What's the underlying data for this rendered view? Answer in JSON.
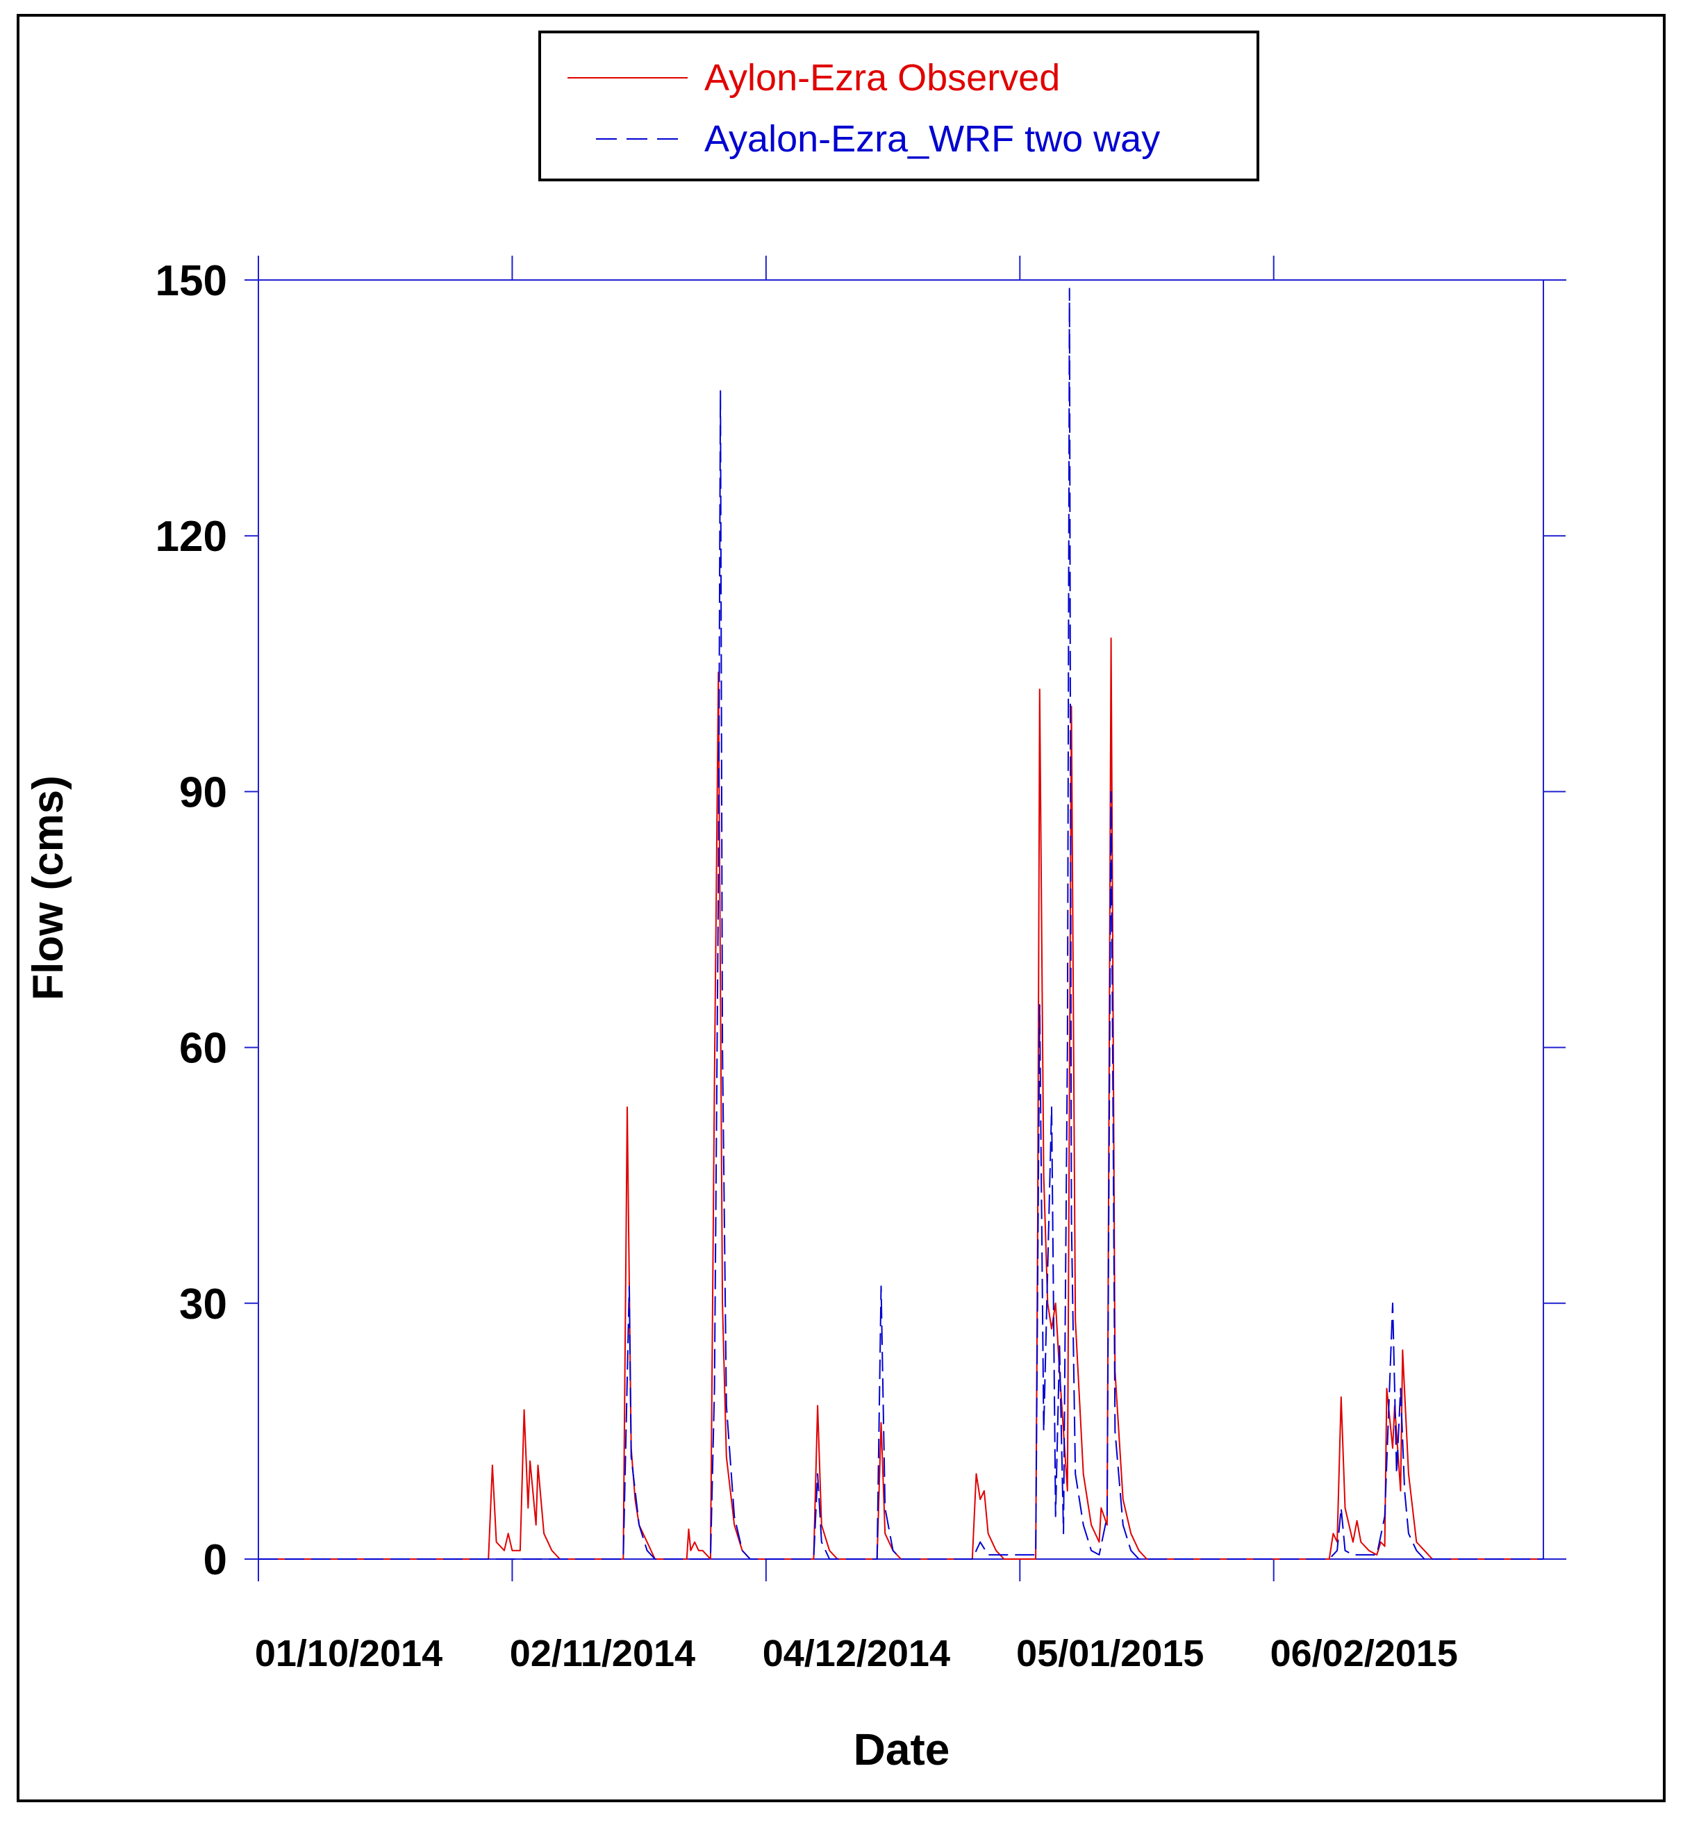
{
  "chart_data": {
    "type": "line",
    "title": "",
    "xlabel": "Date",
    "ylabel": "Flow (cms)",
    "x_type": "date",
    "xlim": [
      "2014-10-01",
      "2015-03-12"
    ],
    "ylim": [
      0,
      150
    ],
    "x_ticks": [
      {
        "date": "2014-10-01",
        "label": "01/10/2014"
      },
      {
        "date": "2014-11-02",
        "label": "02/11/2014"
      },
      {
        "date": "2014-12-04",
        "label": "04/12/2014"
      },
      {
        "date": "2015-01-05",
        "label": "05/01/2015"
      },
      {
        "date": "2015-02-06",
        "label": "06/02/2015"
      }
    ],
    "y_ticks": [
      0,
      30,
      60,
      90,
      120,
      150
    ],
    "y_tick_labels": [
      "0",
      "30",
      "60",
      "90",
      "120",
      "150"
    ],
    "grid": false,
    "legend_position": "top-center",
    "series": [
      {
        "name": "Aylon-Ezra Observed",
        "color": "#e00000",
        "line_style": "solid",
        "points": [
          [
            "2014-10-01",
            0
          ],
          [
            "2014-10-30",
            0
          ],
          [
            "2014-10-30T12",
            11
          ],
          [
            "2014-10-31",
            2
          ],
          [
            "2014-11-01",
            1
          ],
          [
            "2014-11-01T12",
            3
          ],
          [
            "2014-11-02",
            1
          ],
          [
            "2014-11-03",
            1
          ],
          [
            "2014-11-03T12",
            17.5
          ],
          [
            "2014-11-04",
            6
          ],
          [
            "2014-11-04T06",
            11.5
          ],
          [
            "2014-11-05",
            4
          ],
          [
            "2014-11-05T06",
            11
          ],
          [
            "2014-11-06",
            3
          ],
          [
            "2014-11-07",
            1
          ],
          [
            "2014-11-08",
            0
          ],
          [
            "2014-11-16",
            0
          ],
          [
            "2014-11-16T12",
            53
          ],
          [
            "2014-11-17",
            13
          ],
          [
            "2014-11-17T12",
            7
          ],
          [
            "2014-11-18",
            4
          ],
          [
            "2014-11-19",
            2
          ],
          [
            "2014-11-20",
            0
          ],
          [
            "2014-11-24",
            0
          ],
          [
            "2014-11-24T06",
            3.5
          ],
          [
            "2014-11-24T12",
            1
          ],
          [
            "2014-11-25",
            2
          ],
          [
            "2014-11-25T12",
            1
          ],
          [
            "2014-11-26",
            1
          ],
          [
            "2014-11-27",
            0
          ],
          [
            "2014-11-27T12",
            56
          ],
          [
            "2014-11-28",
            104
          ],
          [
            "2014-11-28T12",
            30
          ],
          [
            "2014-11-29",
            12
          ],
          [
            "2014-11-30",
            4
          ],
          [
            "2014-12-01",
            1
          ],
          [
            "2014-12-02",
            0
          ],
          [
            "2014-12-10",
            0
          ],
          [
            "2014-12-10T12",
            18
          ],
          [
            "2014-12-11",
            4
          ],
          [
            "2014-12-12",
            1
          ],
          [
            "2014-12-13",
            0
          ],
          [
            "2014-12-18",
            0
          ],
          [
            "2014-12-18T12",
            16
          ],
          [
            "2014-12-19",
            3
          ],
          [
            "2014-12-20",
            1
          ],
          [
            "2014-12-21",
            0
          ],
          [
            "2014-12-30",
            0
          ],
          [
            "2014-12-30T12",
            10
          ],
          [
            "2014-12-31",
            7
          ],
          [
            "2014-12-31T12",
            8
          ],
          [
            "2015-01-01",
            3
          ],
          [
            "2015-01-02",
            1
          ],
          [
            "2015-01-03",
            0
          ],
          [
            "2015-01-07",
            0
          ],
          [
            "2015-01-07T06",
            40
          ],
          [
            "2015-01-07T12",
            102
          ],
          [
            "2015-01-08",
            45
          ],
          [
            "2015-01-08T12",
            30
          ],
          [
            "2015-01-09",
            27
          ],
          [
            "2015-01-09T12",
            30
          ],
          [
            "2015-01-10",
            22
          ],
          [
            "2015-01-11",
            8
          ],
          [
            "2015-01-11T12",
            100
          ],
          [
            "2015-01-12",
            28
          ],
          [
            "2015-01-13",
            10
          ],
          [
            "2015-01-14",
            4
          ],
          [
            "2015-01-15",
            2
          ],
          [
            "2015-01-15T06",
            6
          ],
          [
            "2015-01-16",
            4
          ],
          [
            "2015-01-16T12",
            108
          ],
          [
            "2015-01-17",
            22
          ],
          [
            "2015-01-18",
            7
          ],
          [
            "2015-01-19",
            3
          ],
          [
            "2015-01-20",
            1
          ],
          [
            "2015-01-21",
            0
          ],
          [
            "2015-02-13",
            0
          ],
          [
            "2015-02-13T12",
            3
          ],
          [
            "2015-02-14",
            2
          ],
          [
            "2015-02-14T12",
            19
          ],
          [
            "2015-02-15",
            6
          ],
          [
            "2015-02-16",
            2
          ],
          [
            "2015-02-16T12",
            4.5
          ],
          [
            "2015-02-17",
            2
          ],
          [
            "2015-02-18",
            1
          ],
          [
            "2015-02-19",
            0.5
          ],
          [
            "2015-02-19T12",
            2
          ],
          [
            "2015-02-20",
            1.5
          ],
          [
            "2015-02-20T06",
            20
          ],
          [
            "2015-02-21",
            13
          ],
          [
            "2015-02-21T06",
            18
          ],
          [
            "2015-02-22",
            8
          ],
          [
            "2015-02-22T06",
            24.5
          ],
          [
            "2015-02-23",
            10
          ],
          [
            "2015-02-24",
            2
          ],
          [
            "2015-02-25",
            1
          ],
          [
            "2015-02-26",
            0
          ],
          [
            "2015-03-12",
            0
          ]
        ]
      },
      {
        "name": "Ayalon-Ezra_WRF two way",
        "color": "#0000d0",
        "line_style": "dashed",
        "points": [
          [
            "2014-10-01",
            0
          ],
          [
            "2014-11-16",
            0
          ],
          [
            "2014-11-16T18",
            32
          ],
          [
            "2014-11-17",
            12
          ],
          [
            "2014-11-18",
            4
          ],
          [
            "2014-11-19",
            1
          ],
          [
            "2014-11-20",
            0
          ],
          [
            "2014-11-27",
            0
          ],
          [
            "2014-11-27T12",
            20
          ],
          [
            "2014-11-28",
            80
          ],
          [
            "2014-11-28T06",
            137
          ],
          [
            "2014-11-28T12",
            60
          ],
          [
            "2014-11-29",
            18
          ],
          [
            "2014-11-30",
            5
          ],
          [
            "2014-12-01",
            1
          ],
          [
            "2014-12-02",
            0
          ],
          [
            "2014-12-10",
            0
          ],
          [
            "2014-12-10T12",
            10
          ],
          [
            "2014-12-11",
            2
          ],
          [
            "2014-12-12",
            0
          ],
          [
            "2014-12-18",
            0
          ],
          [
            "2014-12-18T12",
            32
          ],
          [
            "2014-12-19",
            6
          ],
          [
            "2014-12-20",
            1
          ],
          [
            "2014-12-21",
            0
          ],
          [
            "2014-12-30",
            0
          ],
          [
            "2014-12-31",
            2
          ],
          [
            "2015-01-01",
            0.5
          ],
          [
            "2015-01-07",
            0.5
          ],
          [
            "2015-01-07T12",
            65
          ],
          [
            "2015-01-08",
            15
          ],
          [
            "2015-01-09",
            53
          ],
          [
            "2015-01-09T12",
            5
          ],
          [
            "2015-01-10",
            25
          ],
          [
            "2015-01-10T12",
            3
          ],
          [
            "2015-01-11",
            60
          ],
          [
            "2015-01-11T06",
            149
          ],
          [
            "2015-01-11T12",
            40
          ],
          [
            "2015-01-12",
            10
          ],
          [
            "2015-01-13",
            4
          ],
          [
            "2015-01-14",
            1
          ],
          [
            "2015-01-15",
            0.5
          ],
          [
            "2015-01-16",
            5
          ],
          [
            "2015-01-16T12",
            90
          ],
          [
            "2015-01-17",
            15
          ],
          [
            "2015-01-18",
            4
          ],
          [
            "2015-01-19",
            1
          ],
          [
            "2015-01-20",
            0
          ],
          [
            "2015-02-13",
            0
          ],
          [
            "2015-02-14",
            1
          ],
          [
            "2015-02-14T12",
            6
          ],
          [
            "2015-02-15",
            1
          ],
          [
            "2015-02-16",
            0.5
          ],
          [
            "2015-02-19",
            0.5
          ],
          [
            "2015-02-20",
            5
          ],
          [
            "2015-02-21",
            30
          ],
          [
            "2015-02-21T12",
            10
          ],
          [
            "2015-02-22",
            20
          ],
          [
            "2015-02-22T12",
            8
          ],
          [
            "2015-02-23",
            3
          ],
          [
            "2015-02-24",
            1
          ],
          [
            "2015-02-25",
            0
          ],
          [
            "2015-03-12",
            0
          ]
        ]
      }
    ]
  }
}
